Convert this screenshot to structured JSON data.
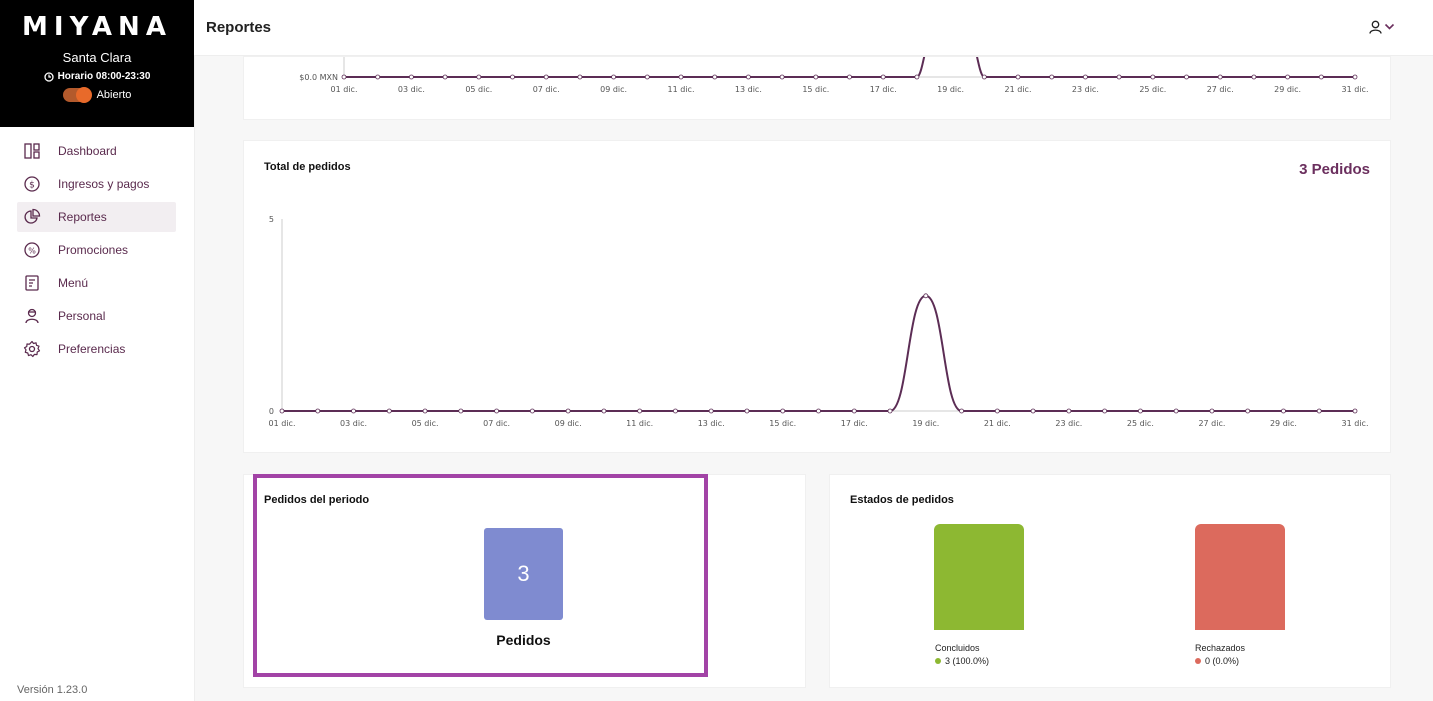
{
  "brand": {
    "logo": "MIYANA",
    "store": "Santa Clara",
    "hours": "Horario 08:00-23:30",
    "status": "Abierto"
  },
  "nav": [
    {
      "label": "Dashboard",
      "icon": "dashboard-icon"
    },
    {
      "label": "Ingresos y pagos",
      "icon": "dollar-icon"
    },
    {
      "label": "Reportes",
      "icon": "pie-chart-icon"
    },
    {
      "label": "Promociones",
      "icon": "percent-icon"
    },
    {
      "label": "Menú",
      "icon": "menu-book-icon"
    },
    {
      "label": "Personal",
      "icon": "person-icon"
    },
    {
      "label": "Preferencias",
      "icon": "gear-icon"
    }
  ],
  "version": "Versión 1.23.0",
  "header": {
    "title": "Reportes"
  },
  "colors": {
    "line": "#5c2d55",
    "accent": "#6b2f5e",
    "kpi": "#7f8bd0",
    "concluidos": "#8db832",
    "rechazados": "#dc6a5d"
  },
  "chart_data": [
    {
      "type": "line",
      "title": "",
      "y_tick_labels": [
        "$0.0 MXN"
      ],
      "x_tick_labels": [
        "01 dic.",
        "03 dic.",
        "05 dic.",
        "07 dic.",
        "09 dic.",
        "11 dic.",
        "13 dic.",
        "15 dic.",
        "17 dic.",
        "19 dic.",
        "21 dic.",
        "23 dic.",
        "25 dic.",
        "27 dic.",
        "29 dic.",
        "31 dic."
      ],
      "x": [
        1,
        2,
        3,
        4,
        5,
        6,
        7,
        8,
        9,
        10,
        11,
        12,
        13,
        14,
        15,
        16,
        17,
        18,
        19,
        20,
        21,
        22,
        23,
        24,
        25,
        26,
        27,
        28,
        29,
        30,
        31
      ],
      "note_cropped": true
    },
    {
      "type": "line",
      "title": "Total de pedidos",
      "total_label": "3 Pedidos",
      "ylim": [
        0,
        5
      ],
      "y_tick_labels": [
        "5",
        "0"
      ],
      "x_tick_labels": [
        "01 dic.",
        "03 dic.",
        "05 dic.",
        "07 dic.",
        "09 dic.",
        "11 dic.",
        "13 dic.",
        "15 dic.",
        "17 dic.",
        "19 dic.",
        "21 dic.",
        "23 dic.",
        "25 dic.",
        "27 dic.",
        "29 dic.",
        "31 dic."
      ],
      "x": [
        1,
        2,
        3,
        4,
        5,
        6,
        7,
        8,
        9,
        10,
        11,
        12,
        13,
        14,
        15,
        16,
        17,
        18,
        19,
        20,
        21,
        22,
        23,
        24,
        25,
        26,
        27,
        28,
        29,
        30,
        31
      ],
      "values": [
        0,
        0,
        0,
        0,
        0,
        0,
        0,
        0,
        0,
        0,
        0,
        0,
        0,
        0,
        0,
        0,
        0,
        0,
        3,
        0,
        0,
        0,
        0,
        0,
        0,
        0,
        0,
        0,
        0,
        0,
        0
      ]
    },
    {
      "type": "bar",
      "title": "Estados de pedidos",
      "categories": [
        "Concluidos",
        "Rechazados"
      ],
      "values": [
        3,
        0
      ],
      "value_labels": [
        "3 (100.0%)",
        "0 (0.0%)"
      ]
    }
  ],
  "periodo": {
    "title": "Pedidos del periodo",
    "value": "3",
    "label": "Pedidos"
  }
}
